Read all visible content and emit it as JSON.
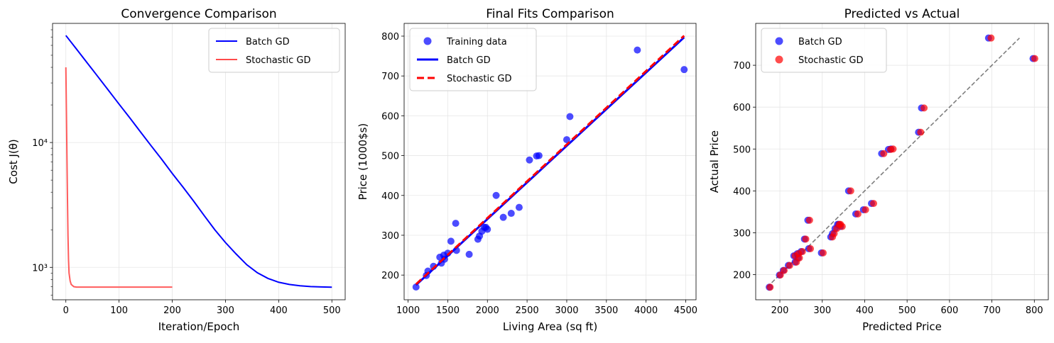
{
  "chart_data": [
    {
      "type": "line",
      "title": "Convergence Comparison",
      "xlabel": "Iteration/Epoch",
      "ylabel": "Cost J(θ)",
      "yscale": "log",
      "xlim": [
        -25,
        525
      ],
      "ylim": [
        550,
        90000
      ],
      "xticks": [
        0,
        100,
        200,
        300,
        400,
        500
      ],
      "yticks": [
        {
          "value": 1000,
          "label": "10³"
        },
        {
          "value": 10000,
          "label": "10⁴"
        }
      ],
      "grid": true,
      "legend": "top-right",
      "series": [
        {
          "name": "Batch GD",
          "color": "#0000ff",
          "points": [
            [
              0,
              72000
            ],
            [
              20,
              56000
            ],
            [
              40,
              43500
            ],
            [
              60,
              33800
            ],
            [
              80,
              26200
            ],
            [
              100,
              20300
            ],
            [
              120,
              15800
            ],
            [
              140,
              12200
            ],
            [
              160,
              9450
            ],
            [
              180,
              7350
            ],
            [
              200,
              5650
            ],
            [
              220,
              4400
            ],
            [
              240,
              3400
            ],
            [
              260,
              2600
            ],
            [
              280,
              2000
            ],
            [
              300,
              1580
            ],
            [
              320,
              1280
            ],
            [
              340,
              1050
            ],
            [
              360,
              905
            ],
            [
              380,
              815
            ],
            [
              400,
              760
            ],
            [
              420,
              730
            ],
            [
              440,
              712
            ],
            [
              460,
              702
            ],
            [
              480,
              697
            ],
            [
              500,
              694
            ]
          ]
        },
        {
          "name": "Stochastic GD",
          "color": "#ff4a4a",
          "points": [
            [
              0,
              40000
            ],
            [
              1,
              18000
            ],
            [
              2,
              8000
            ],
            [
              3,
              3600
            ],
            [
              4,
              1800
            ],
            [
              5,
              1150
            ],
            [
              6,
              900
            ],
            [
              8,
              780
            ],
            [
              10,
              730
            ],
            [
              15,
              700
            ],
            [
              20,
              695
            ],
            [
              50,
              695
            ],
            [
              100,
              695
            ],
            [
              150,
              695
            ],
            [
              200,
              695
            ]
          ]
        }
      ]
    },
    {
      "type": "scatter",
      "title": "Final Fits Comparison",
      "xlabel": "Living Area (sq ft)",
      "ylabel": "Price (1000$s)",
      "xlim": [
        950,
        4630
      ],
      "ylim": [
        138,
        832
      ],
      "xticks": [
        1000,
        1500,
        2000,
        2500,
        3000,
        3500,
        4000,
        4500
      ],
      "yticks": [
        200,
        300,
        400,
        500,
        600,
        700,
        800
      ],
      "grid": true,
      "legend": "top-left",
      "series": [
        {
          "name": "Training data",
          "color": "#0000ff",
          "points": [
            [
              1100,
              170
            ],
            [
              1230,
              199
            ],
            [
              1250,
              210
            ],
            [
              1320,
              222
            ],
            [
              1400,
              245
            ],
            [
              1420,
              230
            ],
            [
              1450,
              250
            ],
            [
              1460,
              240
            ],
            [
              1500,
              255
            ],
            [
              1540,
              285
            ],
            [
              1600,
              330
            ],
            [
              1610,
              262
            ],
            [
              1770,
              252
            ],
            [
              1880,
              290
            ],
            [
              1900,
              298
            ],
            [
              1930,
              310
            ],
            [
              1960,
              320
            ],
            [
              1980,
              320
            ],
            [
              2000,
              315
            ],
            [
              2110,
              400
            ],
            [
              2200,
              345
            ],
            [
              2300,
              355
            ],
            [
              2400,
              370
            ],
            [
              2530,
              489
            ],
            [
              2620,
              499
            ],
            [
              2650,
              500
            ],
            [
              3000,
              540
            ],
            [
              3040,
              598
            ],
            [
              3890,
              765
            ],
            [
              4480,
              716
            ]
          ]
        },
        {
          "name": "Batch GD",
          "color": "#0000ff",
          "line": [
            [
              1100,
              175
            ],
            [
              4480,
              797
            ]
          ]
        },
        {
          "name": "Stochastic GD",
          "color": "#ff0000",
          "line": [
            [
              1100,
              177
            ],
            [
              4480,
              801
            ]
          ]
        }
      ]
    },
    {
      "type": "scatter",
      "title": "Predicted vs Actual",
      "xlabel": "Predicted Price",
      "ylabel": "Actual Price",
      "xlim": [
        143,
        833
      ],
      "ylim": [
        140,
        800
      ],
      "xticks": [
        200,
        300,
        400,
        500,
        600,
        700,
        800
      ],
      "yticks": [
        200,
        300,
        400,
        500,
        600,
        700
      ],
      "grid": true,
      "legend": "top-left",
      "reference_line": [
        [
          170,
          170
        ],
        [
          765,
          765
        ]
      ],
      "series": [
        {
          "name": "Batch GD",
          "color": "#0000ff",
          "points": [
            [
              175,
              170
            ],
            [
              199,
              199
            ],
            [
              208,
              210
            ],
            [
              220,
              222
            ],
            [
              233,
              245
            ],
            [
              236,
              230
            ],
            [
              241,
              250
            ],
            [
              243,
              240
            ],
            [
              250,
              255
            ],
            [
              258,
              285
            ],
            [
              266,
              330
            ],
            [
              268,
              262
            ],
            [
              298,
              252
            ],
            [
              320,
              290
            ],
            [
              324,
              298
            ],
            [
              330,
              310
            ],
            [
              336,
              320
            ],
            [
              339,
              320
            ],
            [
              343,
              315
            ],
            [
              362,
              400
            ],
            [
              379,
              345
            ],
            [
              397,
              355
            ],
            [
              416,
              370
            ],
            [
              440,
              489
            ],
            [
              456,
              499
            ],
            [
              462,
              500
            ],
            [
              527,
              540
            ],
            [
              534,
              598
            ],
            [
              692,
              765
            ],
            [
              797,
              716
            ]
          ]
        },
        {
          "name": "Stochastic GD",
          "color": "#ff0000",
          "points": [
            [
              177,
              170
            ],
            [
              201,
              199
            ],
            [
              210,
              210
            ],
            [
              223,
              222
            ],
            [
              236,
              245
            ],
            [
              239,
              230
            ],
            [
              244,
              250
            ],
            [
              246,
              240
            ],
            [
              253,
              255
            ],
            [
              261,
              285
            ],
            [
              270,
              330
            ],
            [
              272,
              262
            ],
            [
              302,
              252
            ],
            [
              324,
              290
            ],
            [
              328,
              298
            ],
            [
              334,
              310
            ],
            [
              340,
              320
            ],
            [
              343,
              320
            ],
            [
              347,
              315
            ],
            [
              367,
              400
            ],
            [
              384,
              345
            ],
            [
              402,
              355
            ],
            [
              421,
              370
            ],
            [
              445,
              489
            ],
            [
              461,
              499
            ],
            [
              467,
              500
            ],
            [
              532,
              540
            ],
            [
              540,
              598
            ],
            [
              698,
              765
            ],
            [
              801,
              716
            ]
          ]
        }
      ]
    }
  ]
}
